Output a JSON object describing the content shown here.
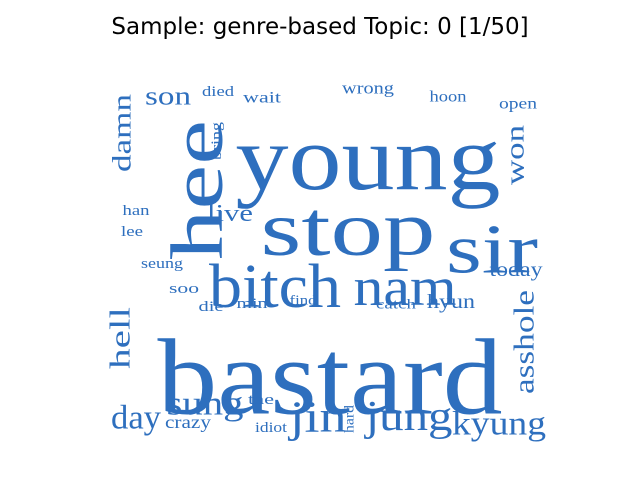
{
  "title": "Sample: genre-based Topic: 0 [1/50]",
  "word_color": "#2e6fbe",
  "words": [
    {
      "text": "young"
    },
    {
      "text": "bastard"
    },
    {
      "text": "stop"
    },
    {
      "text": "hee"
    },
    {
      "text": "sir"
    },
    {
      "text": "bitch"
    },
    {
      "text": "nam"
    },
    {
      "text": "jin"
    },
    {
      "text": "jung"
    },
    {
      "text": "kyung"
    },
    {
      "text": "sung"
    },
    {
      "text": "day"
    },
    {
      "text": "hell"
    },
    {
      "text": "asshole"
    },
    {
      "text": "damn"
    },
    {
      "text": "won"
    },
    {
      "text": "son"
    },
    {
      "text": "live"
    },
    {
      "text": "today"
    },
    {
      "text": "hyun"
    },
    {
      "text": "crazy"
    },
    {
      "text": "wrong"
    },
    {
      "text": "hoon"
    },
    {
      "text": "open"
    },
    {
      "text": "died"
    },
    {
      "text": "wait"
    },
    {
      "text": "bring"
    },
    {
      "text": "han"
    },
    {
      "text": "lee"
    },
    {
      "text": "seung"
    },
    {
      "text": "soo"
    },
    {
      "text": "die"
    },
    {
      "text": "min"
    },
    {
      "text": "find"
    },
    {
      "text": "catch"
    },
    {
      "text": "tae"
    },
    {
      "text": "idiot"
    },
    {
      "text": "hard"
    }
  ]
}
